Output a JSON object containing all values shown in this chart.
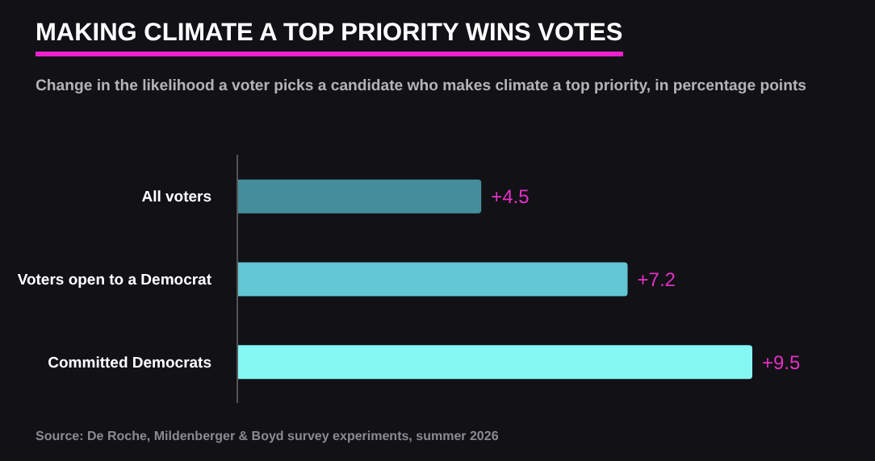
{
  "chart_data": {
    "type": "bar",
    "orientation": "horizontal",
    "title": "MAKING CLIMATE A TOP PRIORITY WINS VOTES",
    "subtitle": "Change in the likelihood a voter picks a candidate who makes climate a top priority, in percentage points",
    "annotations": [
      "Source: De Roche, Mildenberger & Boyd survey experiments, summer 2026"
    ],
    "categories": [
      "All voters",
      "Voters open to a Democrat",
      "Committed Democrats"
    ],
    "values": [
      4.5,
      7.2,
      9.5
    ],
    "value_labels": [
      "+4.5",
      "+7.2",
      "+9.5"
    ],
    "colors": [
      "#438e9a",
      "#62c6d4",
      "#86f8f4"
    ]
  }
}
